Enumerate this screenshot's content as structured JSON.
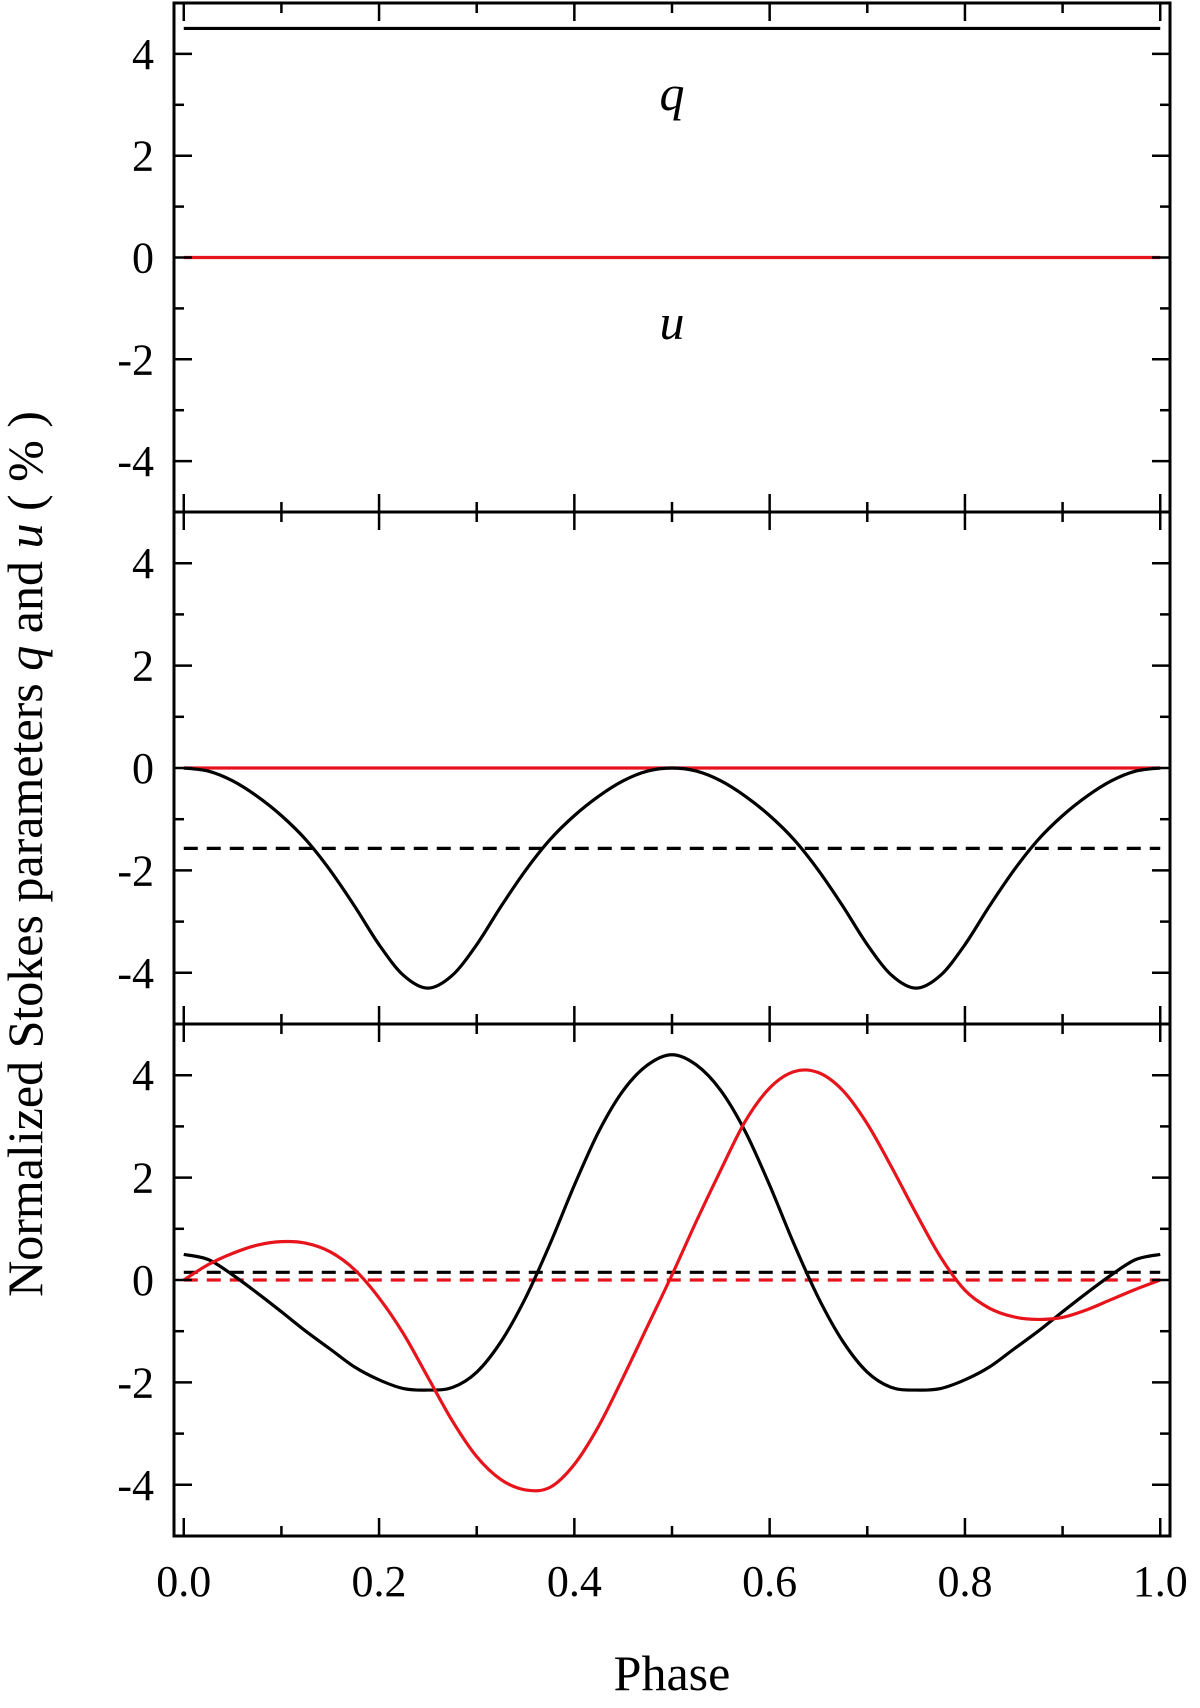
{
  "chart_data": {
    "type": "line",
    "xlabel": "Phase",
    "ylabel": {
      "parts": [
        {
          "text": "Normalized Stokes parameters ",
          "italic": false
        },
        {
          "text": "q",
          "italic": true
        },
        {
          "text": " and ",
          "italic": false
        },
        {
          "text": "u",
          "italic": true
        },
        {
          "text": " ( % )",
          "italic": false
        }
      ]
    },
    "x_ticks": [
      "0.0",
      "0.2",
      "0.4",
      "0.6",
      "0.8",
      "1.0"
    ],
    "xlim": [
      -0.01,
      1.01
    ],
    "colors": {
      "q": "#000000",
      "u": "#e8141c"
    },
    "panels": [
      {
        "id": "top",
        "ylim": [
          -5,
          5
        ],
        "y_ticks": [
          "4",
          "2",
          "0",
          "-2",
          "-4"
        ],
        "annotations": [
          {
            "text": "q",
            "x": 0.5,
            "y": 2.9
          },
          {
            "text": "u",
            "x": 0.5,
            "y": -1.6
          }
        ],
        "series": [
          {
            "color": "black",
            "style": "solid",
            "x": [
              0,
              1
            ],
            "y": [
              4.5,
              4.5
            ]
          },
          {
            "color": "red",
            "style": "solid",
            "x": [
              0,
              1
            ],
            "y": [
              0,
              0
            ]
          }
        ]
      },
      {
        "id": "middle",
        "ylim": [
          -5,
          5
        ],
        "y_ticks": [
          "4",
          "2",
          "0",
          "-2",
          "-4"
        ],
        "series": [
          {
            "color": "red",
            "style": "solid",
            "x": [
              0,
              1
            ],
            "y": [
              0,
              0
            ]
          },
          {
            "color": "black",
            "style": "dashed",
            "x": [
              0,
              1
            ],
            "y": [
              -1.57,
              -1.57
            ]
          },
          {
            "color": "black",
            "style": "solid",
            "x": [
              0,
              0.025,
              0.05,
              0.075,
              0.1,
              0.125,
              0.15,
              0.175,
              0.2,
              0.225,
              0.25,
              0.275,
              0.3,
              0.325,
              0.35,
              0.375,
              0.4,
              0.425,
              0.45,
              0.475,
              0.5,
              0.525,
              0.55,
              0.575,
              0.6,
              0.625,
              0.65,
              0.675,
              0.7,
              0.725,
              0.75,
              0.775,
              0.8,
              0.825,
              0.85,
              0.875,
              0.9,
              0.925,
              0.95,
              0.975,
              1.0
            ],
            "y": [
              0,
              -0.06,
              -0.25,
              -0.55,
              -0.93,
              -1.4,
              -2.0,
              -2.7,
              -3.45,
              -4.05,
              -4.3,
              -4.05,
              -3.45,
              -2.7,
              -2.0,
              -1.4,
              -0.93,
              -0.55,
              -0.25,
              -0.06,
              0,
              -0.06,
              -0.25,
              -0.55,
              -0.93,
              -1.4,
              -2.0,
              -2.7,
              -3.45,
              -4.05,
              -4.3,
              -4.05,
              -3.45,
              -2.7,
              -2.0,
              -1.4,
              -0.93,
              -0.55,
              -0.25,
              -0.06,
              0
            ]
          }
        ]
      },
      {
        "id": "bottom",
        "ylim": [
          -5,
          5
        ],
        "y_ticks": [
          "4",
          "2",
          "0",
          "-2",
          "-4"
        ],
        "series": [
          {
            "color": "black",
            "style": "dashed",
            "x": [
              0,
              1
            ],
            "y": [
              0.15,
              0.15
            ]
          },
          {
            "color": "red",
            "style": "dashed",
            "x": [
              0,
              1
            ],
            "y": [
              0,
              0
            ]
          },
          {
            "color": "black",
            "style": "solid",
            "x": [
              0,
              0.025,
              0.05,
              0.075,
              0.1,
              0.125,
              0.15,
              0.175,
              0.2,
              0.225,
              0.25,
              0.275,
              0.3,
              0.325,
              0.35,
              0.375,
              0.4,
              0.425,
              0.45,
              0.475,
              0.5,
              0.525,
              0.55,
              0.575,
              0.6,
              0.625,
              0.65,
              0.675,
              0.7,
              0.725,
              0.75,
              0.775,
              0.8,
              0.825,
              0.85,
              0.875,
              0.9,
              0.925,
              0.95,
              0.975,
              1.0
            ],
            "y": [
              0.5,
              0.4,
              0.1,
              -0.25,
              -0.62,
              -1.0,
              -1.35,
              -1.7,
              -1.95,
              -2.12,
              -2.15,
              -2.1,
              -1.8,
              -1.2,
              -0.35,
              0.7,
              1.85,
              2.9,
              3.7,
              4.2,
              4.4,
              4.2,
              3.7,
              2.9,
              1.85,
              0.7,
              -0.35,
              -1.2,
              -1.8,
              -2.1,
              -2.15,
              -2.12,
              -1.95,
              -1.7,
              -1.35,
              -1.0,
              -0.62,
              -0.25,
              0.1,
              0.4,
              0.5
            ]
          },
          {
            "color": "red",
            "style": "solid",
            "x": [
              0,
              0.025,
              0.05,
              0.075,
              0.1,
              0.125,
              0.15,
              0.175,
              0.2,
              0.225,
              0.25,
              0.275,
              0.3,
              0.325,
              0.35,
              0.375,
              0.4,
              0.425,
              0.45,
              0.475,
              0.5,
              0.525,
              0.55,
              0.575,
              0.6,
              0.625,
              0.65,
              0.675,
              0.7,
              0.725,
              0.75,
              0.775,
              0.8,
              0.825,
              0.85,
              0.875,
              0.9,
              0.925,
              0.95,
              0.975,
              1.0
            ],
            "y": [
              0,
              0.3,
              0.52,
              0.68,
              0.75,
              0.72,
              0.55,
              0.2,
              -0.35,
              -1.05,
              -1.9,
              -2.75,
              -3.45,
              -3.9,
              -4.1,
              -4.05,
              -3.6,
              -2.85,
              -1.9,
              -0.9,
              0.1,
              1.15,
              2.15,
              3.1,
              3.75,
              4.07,
              4.05,
              3.7,
              3.05,
              2.2,
              1.3,
              0.45,
              -0.2,
              -0.55,
              -0.72,
              -0.77,
              -0.73,
              -0.58,
              -0.38,
              -0.18,
              0
            ]
          }
        ]
      }
    ]
  }
}
